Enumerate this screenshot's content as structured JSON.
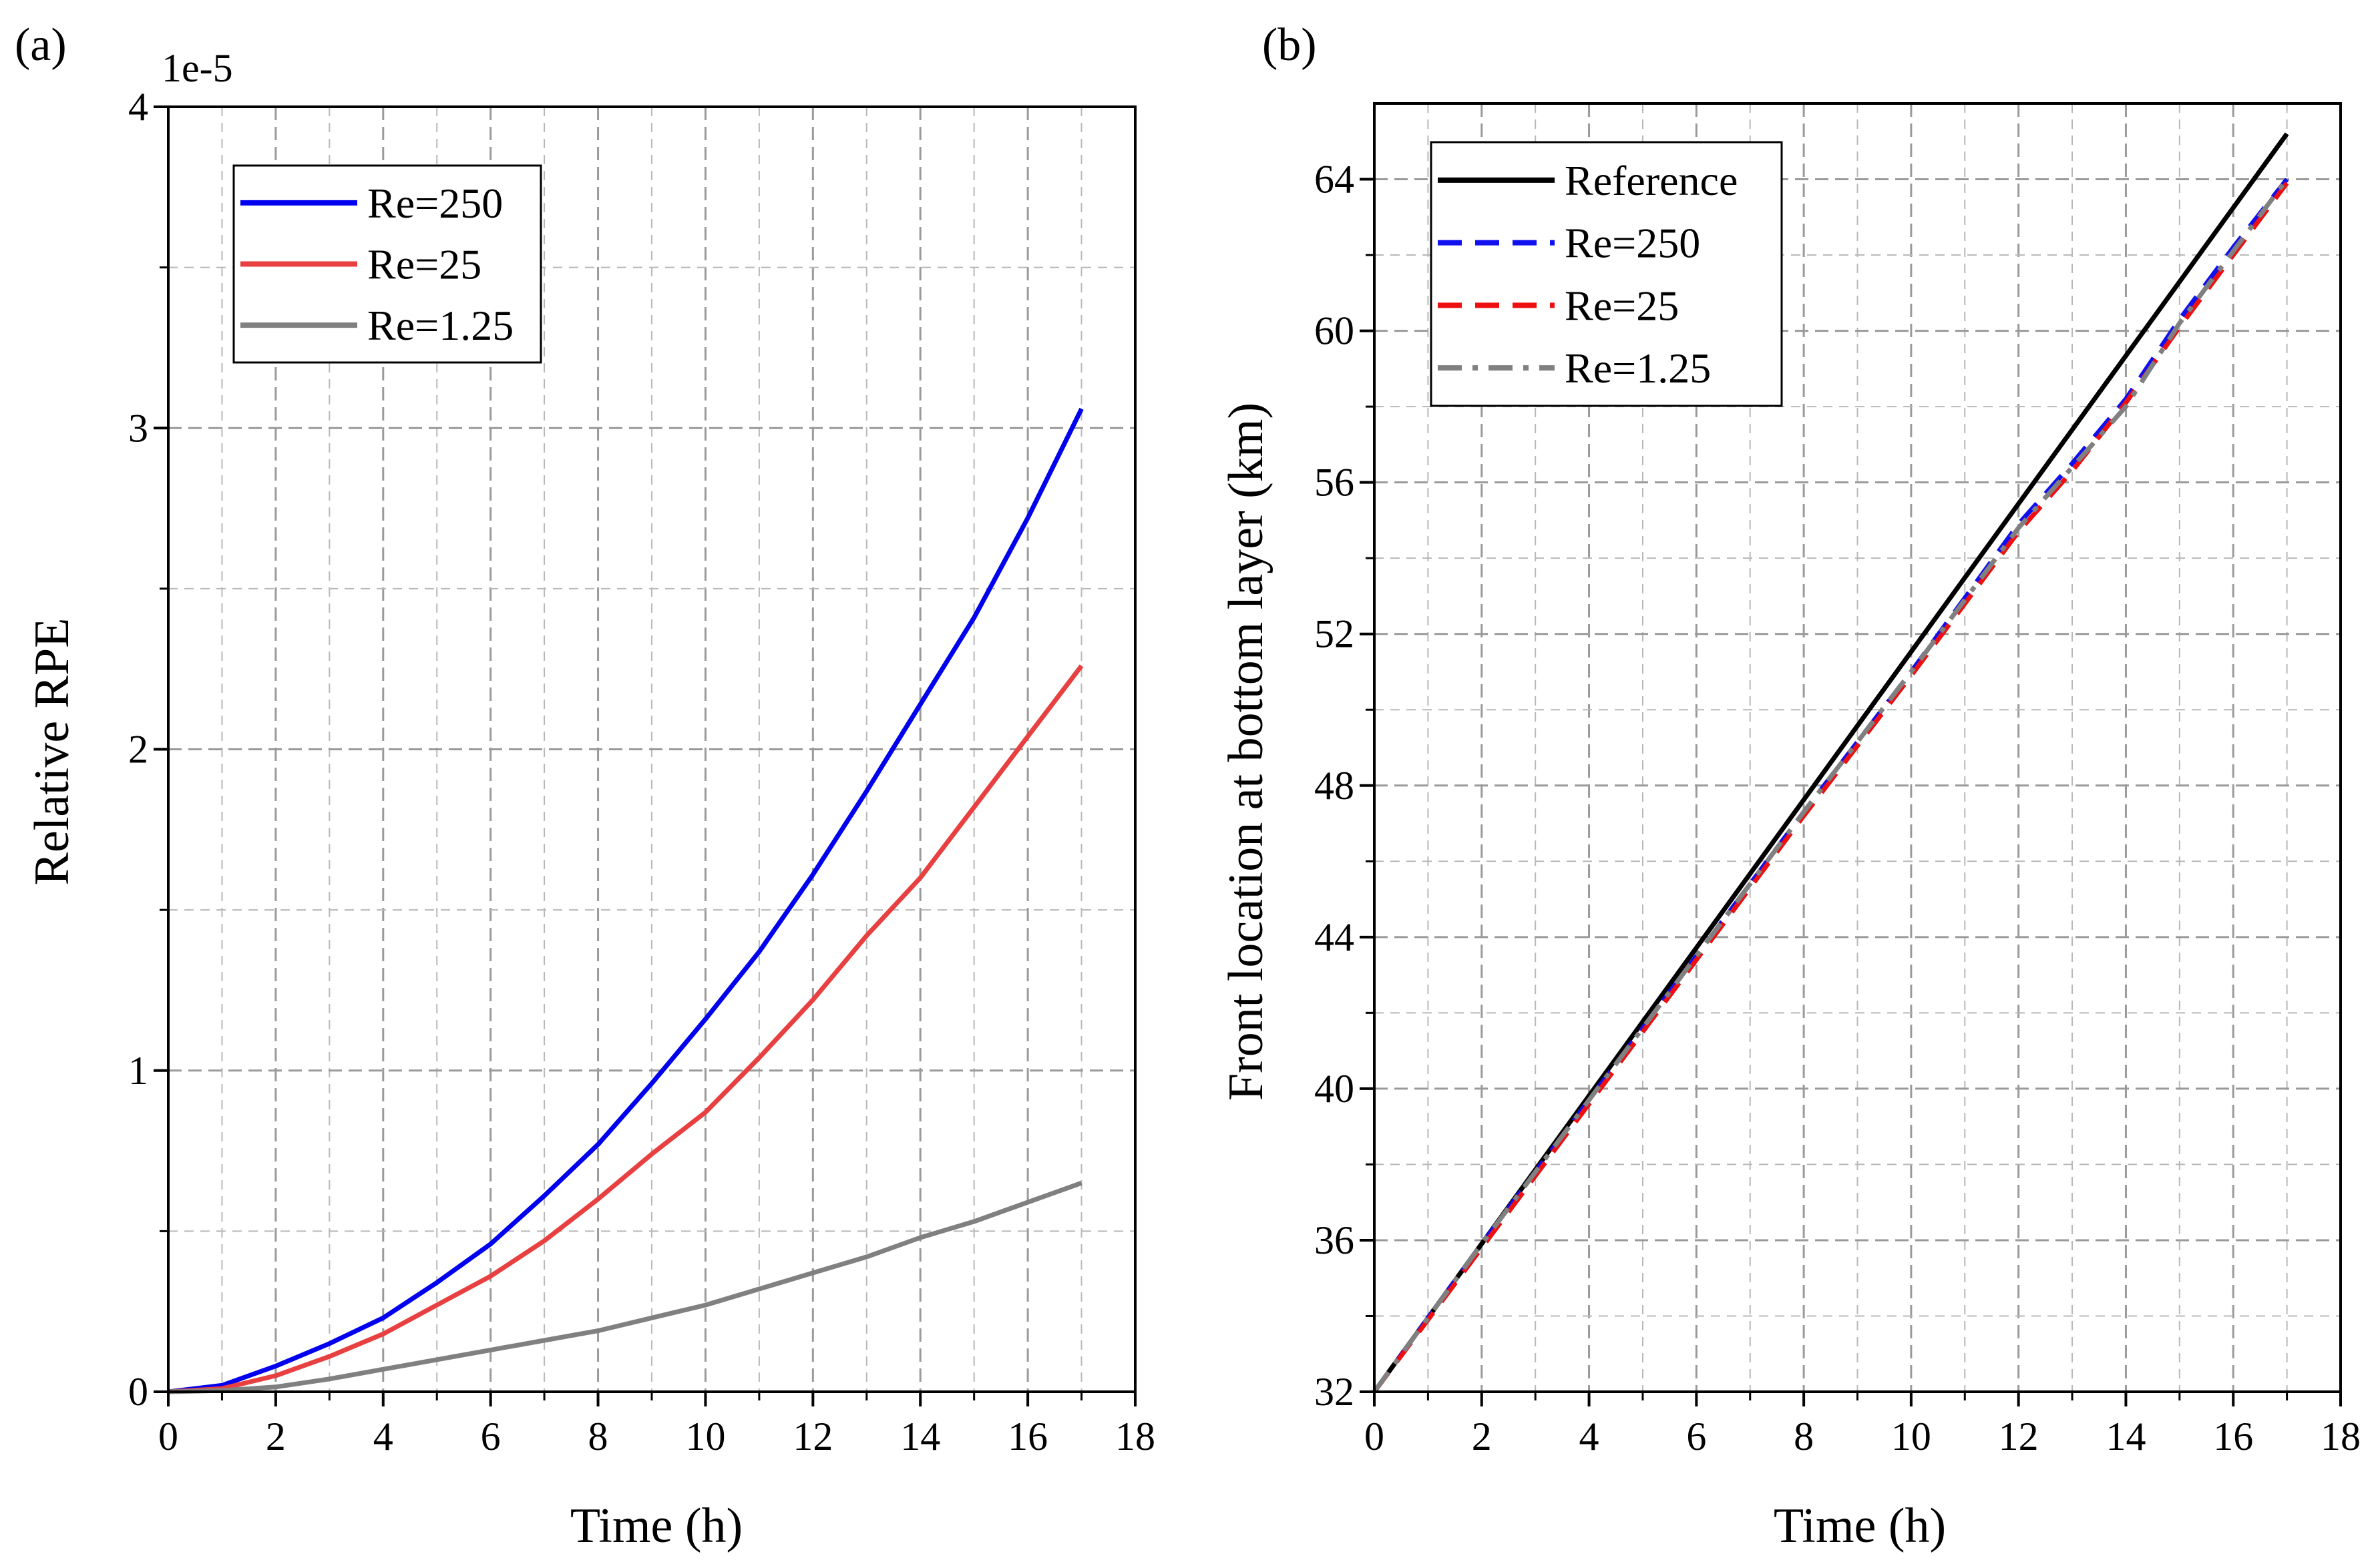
{
  "chart_data": [
    {
      "type": "line",
      "panel_label": "(a)",
      "xlabel": "Time (h)",
      "ylabel": "Relative RPE",
      "y_scale_label": "1e-5",
      "xlim": [
        0,
        18
      ],
      "ylim": [
        0,
        4
      ],
      "x_ticks": [
        "0",
        "2",
        "4",
        "6",
        "8",
        "10",
        "12",
        "14",
        "16",
        "18"
      ],
      "y_ticks": [
        "0",
        "1",
        "2",
        "3",
        "4"
      ],
      "grid": true,
      "legend_position": "top-left",
      "series": [
        {
          "name": "Re=250",
          "color": "#0000ee",
          "dash": "solid",
          "x": [
            0,
            1,
            2,
            3,
            4,
            5,
            6,
            7,
            8,
            9,
            10,
            11,
            12,
            13,
            14,
            15,
            16,
            17
          ],
          "y": [
            0,
            0.02,
            0.08,
            0.15,
            0.23,
            0.34,
            0.46,
            0.61,
            0.77,
            0.96,
            1.16,
            1.37,
            1.61,
            1.87,
            2.14,
            2.41,
            2.72,
            3.06
          ]
        },
        {
          "name": "Re=25",
          "color": "#e84040",
          "dash": "solid",
          "x": [
            0,
            1,
            2,
            3,
            4,
            5,
            6,
            7,
            8,
            9,
            10,
            11,
            12,
            13,
            14,
            15,
            16,
            17
          ],
          "y": [
            0,
            0.01,
            0.05,
            0.11,
            0.18,
            0.27,
            0.36,
            0.47,
            0.6,
            0.74,
            0.87,
            1.04,
            1.22,
            1.42,
            1.6,
            1.82,
            2.04,
            2.26
          ]
        },
        {
          "name": "Re=1.25",
          "color": "#808080",
          "dash": "solid",
          "x": [
            0,
            1,
            2,
            3,
            4,
            5,
            6,
            7,
            8,
            9,
            10,
            11,
            12,
            13,
            14,
            15,
            16,
            17
          ],
          "y": [
            0,
            0.004,
            0.015,
            0.04,
            0.07,
            0.1,
            0.13,
            0.16,
            0.19,
            0.23,
            0.27,
            0.32,
            0.37,
            0.42,
            0.48,
            0.53,
            0.59,
            0.65
          ]
        }
      ]
    },
    {
      "type": "line",
      "panel_label": "(b)",
      "xlabel": "Time (h)",
      "ylabel": "Front location at bottom layer (km)",
      "xlim": [
        0,
        18
      ],
      "ylim": [
        32,
        66
      ],
      "x_ticks": [
        "0",
        "2",
        "4",
        "6",
        "8",
        "10",
        "12",
        "14",
        "16",
        "18"
      ],
      "y_ticks": [
        "32",
        "36",
        "40",
        "44",
        "48",
        "52",
        "56",
        "60",
        "64"
      ],
      "y_tick_values": [
        32,
        36,
        40,
        44,
        48,
        52,
        56,
        60,
        64
      ],
      "grid": true,
      "legend_position": "top-left",
      "series": [
        {
          "name": "Reference",
          "color": "#000000",
          "dash": "solid",
          "x": [
            0,
            17
          ],
          "y": [
            32,
            65.2
          ]
        },
        {
          "name": "Re=250",
          "color": "#1010ee",
          "dash": "dashed",
          "x": [
            0,
            2,
            4,
            6,
            8,
            10,
            12,
            13,
            14,
            15,
            16,
            17
          ],
          "y": [
            32,
            35.9,
            39.7,
            43.5,
            47.3,
            51.0,
            54.9,
            56.5,
            58.2,
            60.3,
            62.2,
            64.0
          ]
        },
        {
          "name": "Re=25",
          "color": "#ee1010",
          "dash": "dashed",
          "x": [
            0,
            2,
            4,
            6,
            8,
            10,
            12,
            13,
            14,
            15,
            16,
            17
          ],
          "y": [
            32,
            35.8,
            39.6,
            43.4,
            47.2,
            50.9,
            54.7,
            56.3,
            58.1,
            60.1,
            62.0,
            63.9
          ]
        },
        {
          "name": "Re=1.25",
          "color": "#808080",
          "dash": "dashdot",
          "x": [
            0,
            2,
            4,
            6,
            8,
            10,
            12,
            13,
            14,
            15,
            16,
            17
          ],
          "y": [
            32,
            35.9,
            39.7,
            43.5,
            47.3,
            51.0,
            54.8,
            56.4,
            58.0,
            60.2,
            62.1,
            64.0
          ]
        }
      ]
    }
  ]
}
